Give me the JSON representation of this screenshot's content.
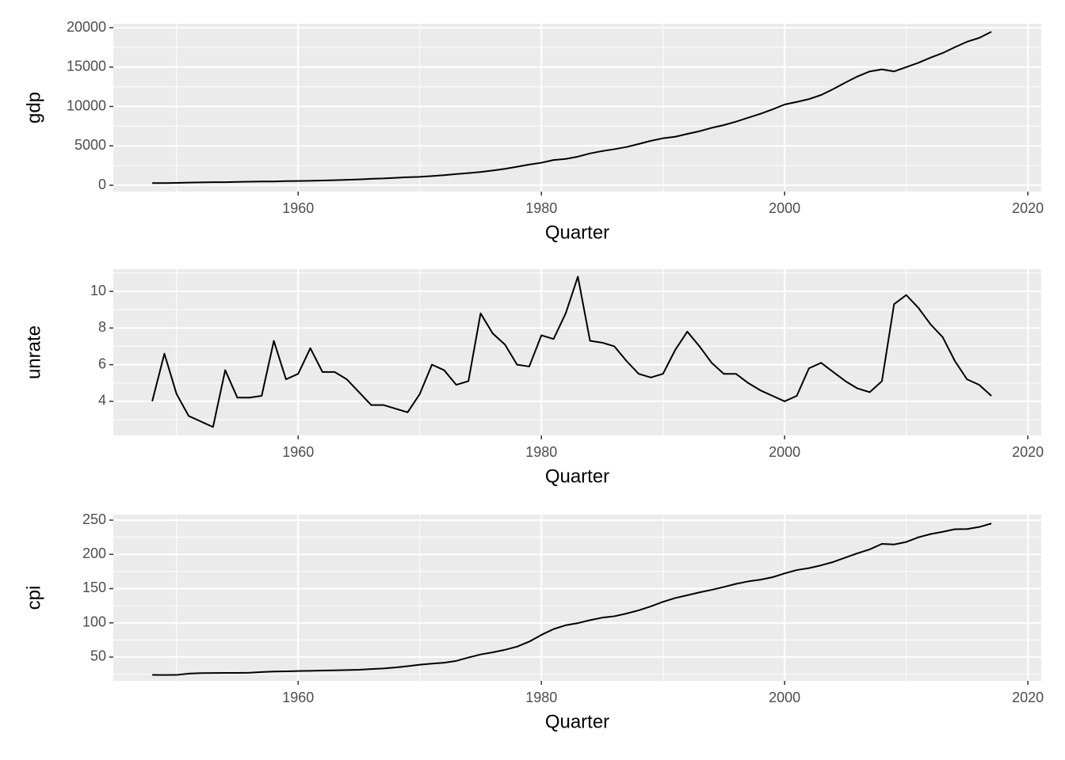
{
  "chart_data": [
    {
      "type": "line",
      "ylabel": "gdp",
      "xlabel": "Quarter",
      "color": "#000000",
      "grid": true,
      "x": [
        1948,
        1949,
        1950,
        1951,
        1952,
        1953,
        1954,
        1955,
        1956,
        1957,
        1958,
        1959,
        1960,
        1961,
        1962,
        1963,
        1964,
        1965,
        1966,
        1967,
        1968,
        1969,
        1970,
        1971,
        1972,
        1973,
        1974,
        1975,
        1976,
        1977,
        1978,
        1979,
        1980,
        1981,
        1982,
        1983,
        1984,
        1985,
        1986,
        1987,
        1988,
        1989,
        1990,
        1991,
        1992,
        1993,
        1994,
        1995,
        1996,
        1997,
        1998,
        1999,
        2000,
        2001,
        2002,
        2003,
        2004,
        2005,
        2006,
        2007,
        2008,
        2009,
        2010,
        2011,
        2012,
        2013,
        2014,
        2015,
        2016,
        2017
      ],
      "values": [
        270,
        272,
        300,
        345,
        367,
        389,
        391,
        426,
        450,
        474,
        481,
        522,
        543,
        563,
        605,
        638,
        686,
        743,
        815,
        861,
        942,
        1019,
        1073,
        1165,
        1279,
        1425,
        1545,
        1684,
        1873,
        2082,
        2352,
        2627,
        2857,
        3207,
        3343,
        3634,
        4037,
        4339,
        4579,
        4855,
        5236,
        5641,
        5963,
        6158,
        6520,
        6858,
        7287,
        7640,
        8073,
        8577,
        9062,
        9631,
        10252,
        10582,
        10936,
        11458,
        12214,
        13037,
        13815,
        14452,
        14713,
        14449,
        14992,
        15543,
        16197,
        16785,
        17522,
        18219,
        18707,
        19485
      ],
      "xlim": [
        1944.8,
        2021.1
      ],
      "xticks": [
        1960,
        1980,
        2000,
        2020
      ],
      "ylim": [
        -804,
        20503
      ],
      "yticks": [
        0,
        5000,
        10000,
        15000,
        20000
      ]
    },
    {
      "type": "line",
      "ylabel": "unrate",
      "xlabel": "Quarter",
      "color": "#000000",
      "grid": true,
      "x": [
        1948,
        1949,
        1950,
        1951,
        1952,
        1953,
        1954,
        1955,
        1956,
        1957,
        1958,
        1959,
        1960,
        1961,
        1962,
        1963,
        1964,
        1965,
        1966,
        1967,
        1968,
        1969,
        1970,
        1971,
        1972,
        1973,
        1974,
        1975,
        1976,
        1977,
        1978,
        1979,
        1980,
        1981,
        1982,
        1983,
        1984,
        1985,
        1986,
        1987,
        1988,
        1989,
        1990,
        1991,
        1992,
        1993,
        1994,
        1995,
        1996,
        1997,
        1998,
        1999,
        2000,
        2001,
        2002,
        2003,
        2004,
        2005,
        2006,
        2007,
        2008,
        2009,
        2010,
        2011,
        2012,
        2013,
        2014,
        2015,
        2016,
        2017
      ],
      "values": [
        4.0,
        6.6,
        4.4,
        3.2,
        2.9,
        2.6,
        5.7,
        4.2,
        4.2,
        4.3,
        7.3,
        5.2,
        5.5,
        6.9,
        5.6,
        5.6,
        5.2,
        4.5,
        3.8,
        3.8,
        3.6,
        3.4,
        4.4,
        6.0,
        5.7,
        4.9,
        5.1,
        8.8,
        7.7,
        7.1,
        6.0,
        5.9,
        7.6,
        7.4,
        8.8,
        10.8,
        7.3,
        7.2,
        7.0,
        6.2,
        5.5,
        5.3,
        5.5,
        6.8,
        7.8,
        7.0,
        6.1,
        5.5,
        5.5,
        5.0,
        4.6,
        4.3,
        4.0,
        4.3,
        5.8,
        6.1,
        5.6,
        5.1,
        4.7,
        4.5,
        5.1,
        9.3,
        9.8,
        9.1,
        8.2,
        7.5,
        6.2,
        5.2,
        4.9,
        4.3
      ],
      "xlim": [
        1944.8,
        2021.1
      ],
      "xticks": [
        1960,
        1980,
        2000,
        2020
      ],
      "ylim": [
        2.14,
        11.21
      ],
      "yticks": [
        4,
        6,
        8,
        10
      ]
    },
    {
      "type": "line",
      "ylabel": "cpi",
      "xlabel": "Quarter",
      "color": "#000000",
      "grid": true,
      "x": [
        1948,
        1949,
        1950,
        1951,
        1952,
        1953,
        1954,
        1955,
        1956,
        1957,
        1958,
        1959,
        1960,
        1961,
        1962,
        1963,
        1964,
        1965,
        1966,
        1967,
        1968,
        1969,
        1970,
        1971,
        1972,
        1973,
        1974,
        1975,
        1976,
        1977,
        1978,
        1979,
        1980,
        1981,
        1982,
        1983,
        1984,
        1985,
        1986,
        1987,
        1988,
        1989,
        1990,
        1991,
        1992,
        1993,
        1994,
        1995,
        1996,
        1997,
        1998,
        1999,
        2000,
        2001,
        2002,
        2003,
        2004,
        2005,
        2006,
        2007,
        2008,
        2009,
        2010,
        2011,
        2012,
        2013,
        2014,
        2015,
        2016,
        2017
      ],
      "values": [
        24,
        23.8,
        23.9,
        25.9,
        26.5,
        26.7,
        26.9,
        26.8,
        27.2,
        28.1,
        28.9,
        29.2,
        29.6,
        29.9,
        30.3,
        30.6,
        31.0,
        31.5,
        32.5,
        33.4,
        34.8,
        36.7,
        38.8,
        40.5,
        41.8,
        44.4,
        49.3,
        53.8,
        56.9,
        60.6,
        65.2,
        72.6,
        82.4,
        90.9,
        96.5,
        99.6,
        103.9,
        107.6,
        109.6,
        113.6,
        118.3,
        124.0,
        130.7,
        136.2,
        140.3,
        144.5,
        148.2,
        152.4,
        156.9,
        160.5,
        163.0,
        166.6,
        172.2,
        177.1,
        179.9,
        184.0,
        188.9,
        195.3,
        201.6,
        207.3,
        215.3,
        214.5,
        218.1,
        224.9,
        229.6,
        233.0,
        236.7,
        237.0,
        240.0,
        245.1
      ],
      "xlim": [
        1944.8,
        2021.1
      ],
      "xticks": [
        1960,
        1980,
        2000,
        2020
      ],
      "ylim": [
        15.3,
        258.1
      ],
      "yticks": [
        50,
        100,
        150,
        200,
        250
      ]
    }
  ]
}
